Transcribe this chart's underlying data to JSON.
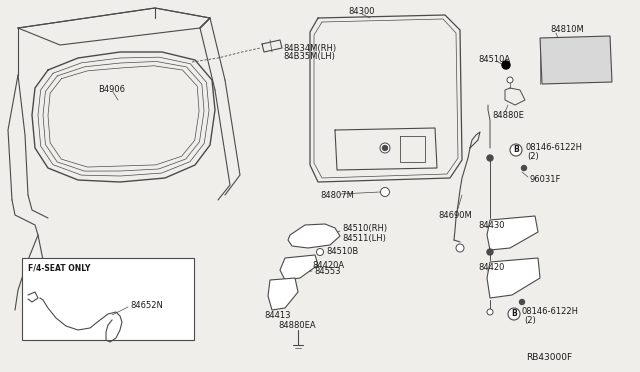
{
  "background_color": "#f0eeea",
  "line_color": "#4a4a4a",
  "text_color": "#1a1a1a",
  "fig_width": 6.4,
  "fig_height": 3.72,
  "dpi": 100,
  "parts": {
    "left_trunk_label": "B4906",
    "trunk_lid_label": "84300",
    "seal_rh": "84B34M(RH)",
    "seal_lh": "84B35M(LH)",
    "bolt_mid": "84807M",
    "handle_rh": "84510(RH)",
    "handle_lh": "84511(LH)",
    "handle_bolt": "84510B",
    "cable_bracket": "84420A",
    "clip": "84553",
    "bracket": "84413",
    "actuator_ea": "84880EA",
    "cable_label": "84652N",
    "seat_note": "F/4-SEAT ONLY",
    "garnish": "84810M",
    "lamp_bracket": "84510A",
    "lamp": "84880E",
    "bolt_upper": "08146-6122H",
    "bolt_upper_qty": "(2)",
    "relay": "96031F",
    "cable_rh": "84690M",
    "latch_upper": "84430",
    "latch_lower": "84420",
    "bolt_lower": "08146-6122H",
    "bolt_lower_qty": "(2)",
    "diagram_id": "RB43000F"
  }
}
